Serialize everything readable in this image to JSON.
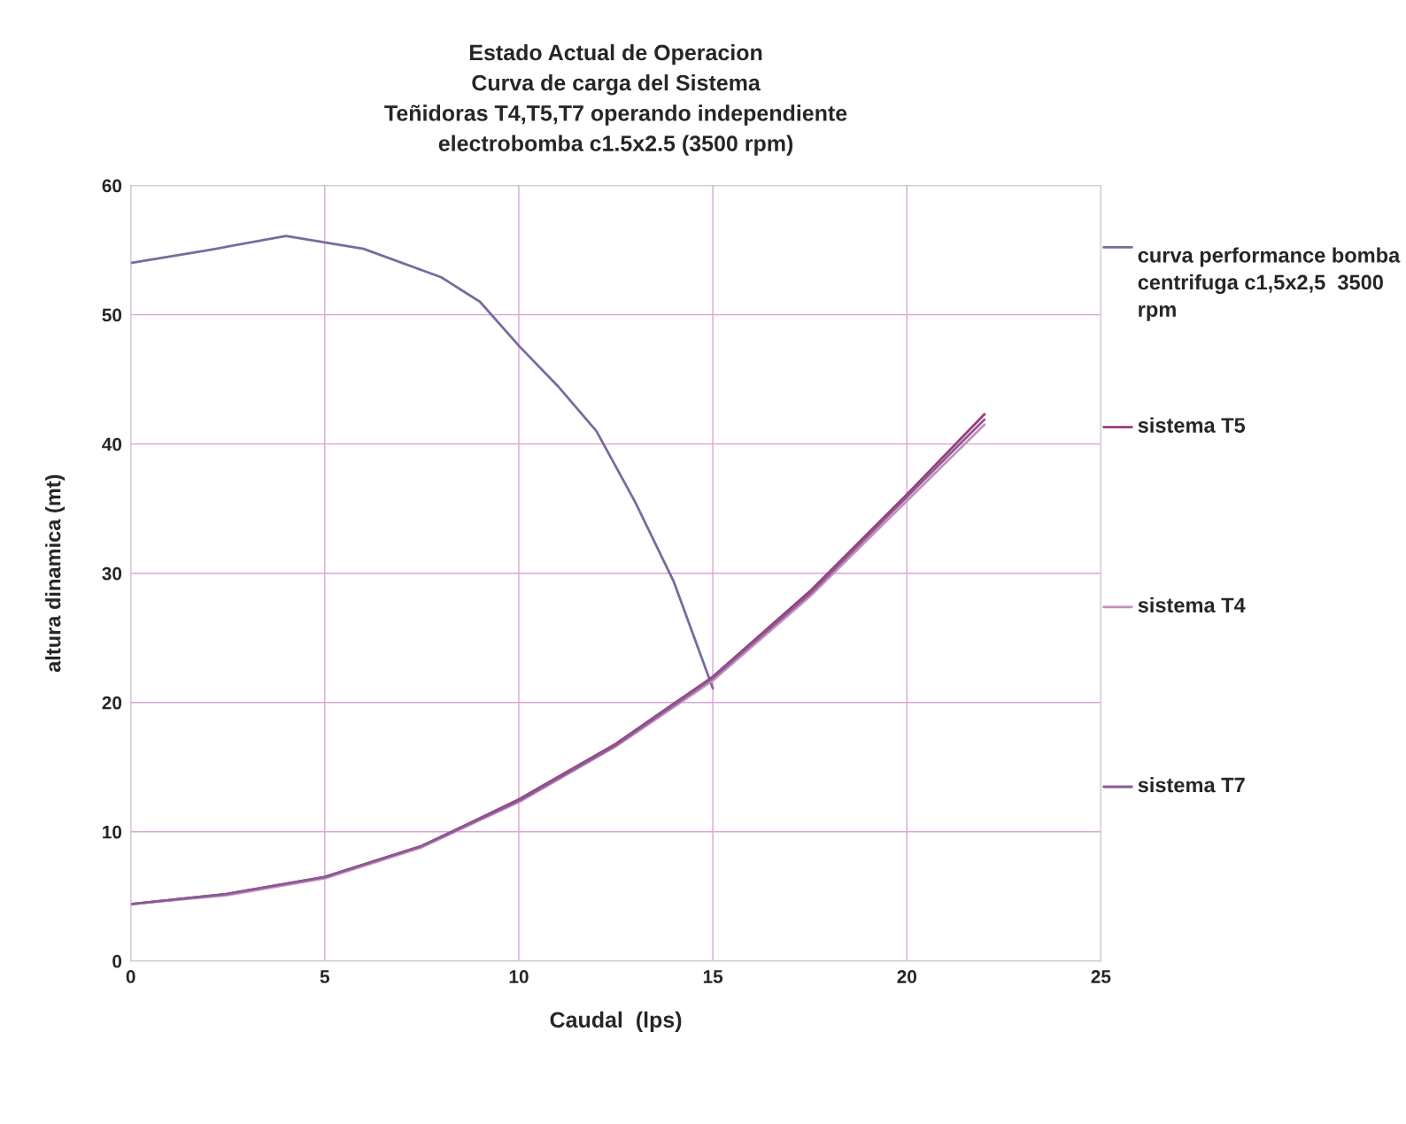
{
  "chart_data": {
    "type": "line",
    "title": "Estado Actual de Operacion\nCurva de carga del Sistema\nTeñidoras T4,T5,T7 operando independiente\nelectrobomba c1.5x2.5 (3500 rpm)",
    "xlabel": "Caudal  (lps)",
    "ylabel": "altura dinamica (mt)",
    "xlim": [
      0,
      25
    ],
    "xticks": [
      0,
      5,
      10,
      15,
      20,
      25
    ],
    "ylim": [
      0,
      60
    ],
    "yticks": [
      0,
      10,
      20,
      30,
      40,
      50,
      60
    ],
    "grid": true,
    "legend": "right",
    "marker": "none",
    "line_style": "solid",
    "series": [
      {
        "name": "curva performance bomba centrifuga c1,5x2,5  3500 rpm",
        "color": "#7a6a9e",
        "x": [
          0,
          2,
          4,
          6,
          8,
          9,
          10,
          11,
          12,
          13,
          14,
          15
        ],
        "values": [
          54.0,
          55.0,
          56.1,
          55.1,
          52.9,
          51.0,
          47.6,
          44.5,
          41.0,
          35.5,
          29.3,
          21.1
        ]
      },
      {
        "name": "sistema T5",
        "color": "#9c3a7a",
        "x": [
          0,
          2.5,
          5,
          7.5,
          10,
          12.5,
          15,
          17.5,
          20,
          22
        ],
        "values": [
          4.4,
          5.2,
          6.5,
          8.9,
          12.5,
          16.8,
          22.0,
          28.6,
          36.1,
          42.3
        ]
      },
      {
        "name": "sistema T4",
        "color": "#c58fc0",
        "x": [
          0,
          2.5,
          5,
          7.5,
          10,
          12.5,
          15,
          17.5,
          20,
          22
        ],
        "values": [
          4.4,
          5.1,
          6.4,
          8.8,
          12.3,
          16.6,
          21.7,
          28.2,
          35.6,
          41.5
        ]
      },
      {
        "name": "sistema T7",
        "color": "#8a5a96",
        "x": [
          0,
          2.5,
          5,
          7.5,
          10,
          12.5,
          15,
          17.5,
          20,
          22
        ],
        "values": [
          4.4,
          5.2,
          6.5,
          8.9,
          12.4,
          16.7,
          21.9,
          28.4,
          35.9,
          41.9
        ]
      }
    ]
  }
}
